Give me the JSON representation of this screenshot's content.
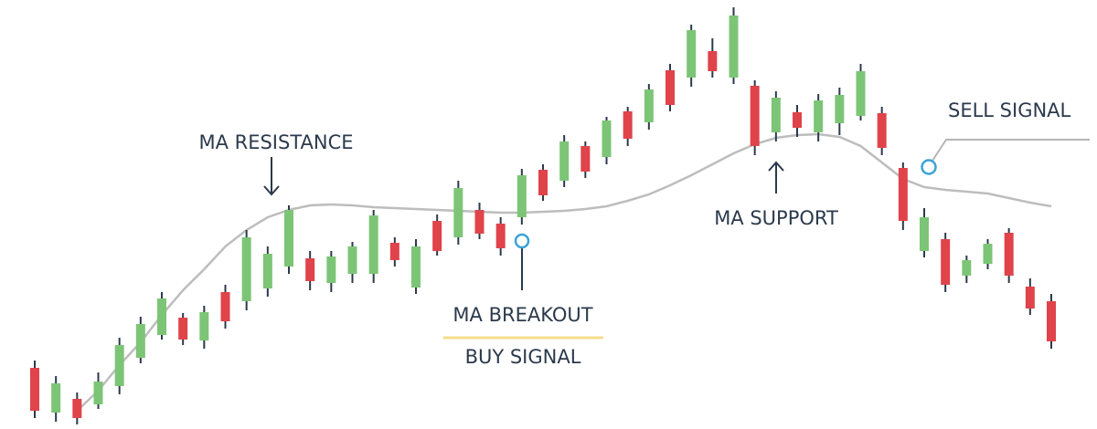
{
  "chart_data": {
    "type": "candlestick",
    "ylim": [
      0,
      470
    ],
    "up_color": "#7cc576",
    "down_color": "#e0434a",
    "ma_color": "#bdbdbd",
    "annotations": [
      "MA RESISTANCE",
      "MA BREAKOUT",
      "BUY SIGNAL",
      "MA SUPPORT",
      "SELL SIGNAL"
    ],
    "open": [
      67,
      18,
      33,
      27,
      47,
      78,
      103,
      122,
      97,
      150,
      140,
      154,
      178,
      187,
      160,
      170,
      170,
      204,
      155,
      228,
      210,
      240,
      225,
      232,
      284,
      272,
      310,
      298,
      348,
      336,
      393,
      385,
      414,
      385,
      376,
      325,
      347,
      325,
      335,
      343,
      346,
      286,
      195,
      208,
      168,
      181,
      215,
      156,
      140
    ],
    "high": [
      75,
      58,
      40,
      62,
      100,
      123,
      150,
      127,
      135,
      158,
      218,
      200,
      245,
      195,
      195,
      205,
      240,
      210,
      208,
      235,
      272,
      248,
      232,
      285,
      290,
      322,
      315,
      342,
      353,
      378,
      400,
      443,
      428,
      462,
      382,
      370,
      355,
      367,
      374,
      400,
      353,
      292,
      242,
      215,
      190,
      208,
      220,
      165,
      148
    ],
    "low": [
      12,
      8,
      5,
      22,
      38,
      72,
      98,
      92,
      88,
      110,
      130,
      145,
      170,
      152,
      150,
      160,
      160,
      178,
      148,
      190,
      202,
      208,
      190,
      224,
      250,
      265,
      275,
      290,
      310,
      328,
      348,
      375,
      385,
      378,
      300,
      315,
      320,
      315,
      322,
      338,
      300,
      218,
      188,
      150,
      160,
      175,
      160,
      125,
      88
    ],
    "close": [
      20,
      50,
      12,
      52,
      92,
      115,
      143,
      98,
      128,
      118,
      210,
      192,
      240,
      162,
      189,
      200,
      234,
      185,
      200,
      195,
      264,
      214,
      198,
      278,
      256,
      315,
      282,
      338,
      318,
      372,
      355,
      437,
      392,
      453,
      310,
      363,
      330,
      360,
      366,
      392,
      308,
      228,
      232,
      158,
      185,
      203,
      168,
      132,
      96
    ],
    "ma": [
      null,
      null,
      20,
      42,
      70,
      95,
      125,
      152,
      175,
      200,
      218,
      232,
      240,
      245,
      246,
      245,
      243,
      242,
      241,
      240,
      239,
      238,
      237,
      237,
      238,
      239,
      241,
      244,
      250,
      257,
      267,
      278,
      290,
      302,
      312,
      319,
      322,
      323,
      320,
      310,
      292,
      274,
      265,
      262,
      260,
      258,
      253,
      248,
      244
    ]
  }
}
